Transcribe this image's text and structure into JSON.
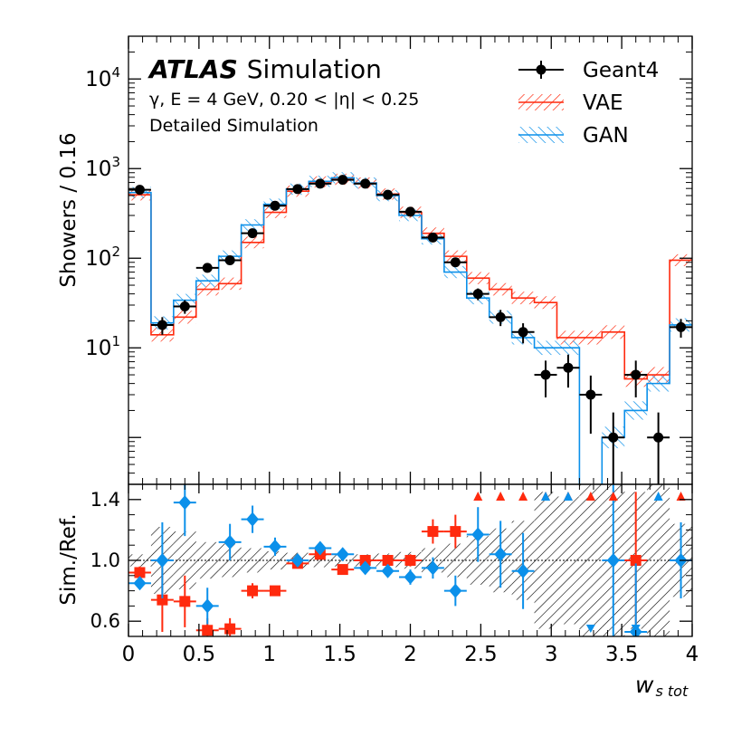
{
  "chart_data": {
    "type": "histogram-with-ratio",
    "x_edges": [
      0,
      0.16,
      0.32,
      0.48,
      0.64,
      0.8,
      0.96,
      1.12,
      1.28,
      1.44,
      1.6,
      1.76,
      1.92,
      2.08,
      2.24,
      2.4,
      2.56,
      2.72,
      2.88,
      3.04,
      3.2,
      3.36,
      3.52,
      3.68,
      3.84,
      4.0
    ],
    "xlim": [
      0,
      4
    ],
    "xticks": [
      0,
      0.5,
      1,
      1.5,
      2,
      2.5,
      3,
      3.5,
      4
    ],
    "xtick_labels": [
      "0",
      "0.5",
      "1",
      "1.5",
      "2",
      "2.5",
      "3",
      "3.5",
      "4"
    ],
    "xlabel_main": "w",
    "xlabel_sub": "s tot",
    "top_panel": {
      "ylabel": "Showers / 0.16",
      "yscale": "log",
      "ylim": [
        0.3,
        30000
      ],
      "yticks": [
        {
          "base": "10",
          "exp": "1",
          "value": 10
        },
        {
          "base": "10",
          "exp": "2",
          "value": 100
        },
        {
          "base": "10",
          "exp": "3",
          "value": 1000
        },
        {
          "base": "10",
          "exp": "4",
          "value": 10000
        }
      ],
      "series": [
        {
          "name": "Geant4",
          "style": "points",
          "color": "#000000",
          "values": [
            580,
            18,
            29,
            78,
            95,
            190,
            385,
            590,
            680,
            750,
            680,
            510,
            330,
            170,
            90,
            40,
            22,
            15,
            5,
            6,
            3,
            1,
            5,
            1,
            17
          ],
          "yerr_lo": [
            24,
            4,
            5,
            8,
            9,
            13,
            19,
            24,
            26,
            27,
            26,
            22,
            18,
            13,
            9,
            6,
            4.5,
            3.8,
            2.2,
            2.4,
            1.9,
            0.9,
            2.2,
            0.9,
            4
          ]
        },
        {
          "name": "VAE",
          "style": "hatched-step",
          "color": "#ff2a0e",
          "values": [
            510,
            14,
            22,
            45,
            52,
            150,
            325,
            560,
            710,
            760,
            690,
            520,
            325,
            190,
            105,
            60,
            45,
            36,
            32,
            13,
            13,
            15,
            4.5,
            5,
            95
          ]
        },
        {
          "name": "GAN",
          "style": "hatched-step",
          "color": "#0b90ea",
          "values": [
            540,
            19,
            34,
            56,
            105,
            235,
            400,
            590,
            720,
            790,
            690,
            500,
            300,
            165,
            70,
            36,
            22,
            13,
            10,
            10,
            0.01,
            1,
            2,
            4,
            18
          ]
        }
      ],
      "legend": [
        "Geant4",
        "VAE",
        "GAN"
      ],
      "legend_position": "top-right",
      "annotation": {
        "brand": "ATLAS",
        "label": "Simulation",
        "line1": "γ, E = 4 GeV, 0.20 < |η| < 0.25",
        "line2": "Detailed Simulation"
      }
    },
    "bottom_panel": {
      "ylabel": "Sim./Ref.",
      "ylim": [
        0.5,
        1.5
      ],
      "yticks": [
        0.6,
        1.0,
        1.4
      ],
      "ytick_labels": [
        "0.6",
        "1.0",
        "1.4"
      ],
      "reference_line": 1.0,
      "ref_unc": [
        0.04,
        0.22,
        0.19,
        0.12,
        0.11,
        0.08,
        0.06,
        0.05,
        0.045,
        0.04,
        0.04,
        0.045,
        0.055,
        0.08,
        0.11,
        0.16,
        0.21,
        0.26,
        0.45,
        0.42,
        0.6,
        1.0,
        0.45,
        1.0,
        0.24
      ],
      "series": [
        {
          "name": "VAE",
          "marker": "square",
          "color": "#ff2a0e",
          "values": [
            0.92,
            0.74,
            0.73,
            0.54,
            0.55,
            0.8,
            0.8,
            0.98,
            1.04,
            0.94,
            1.0,
            1.0,
            1.0,
            1.19,
            1.19,
            null,
            null,
            null,
            null,
            null,
            null,
            null,
            1.0,
            null,
            null
          ],
          "yerr": [
            0.04,
            0.21,
            0.17,
            0.08,
            0.07,
            0.05,
            0.03,
            0.03,
            0.03,
            0.02,
            0.02,
            0.03,
            0.04,
            0.08,
            0.11,
            null,
            null,
            null,
            null,
            null,
            null,
            null,
            0.45,
            null,
            null
          ],
          "overflow_at": [
            2.48,
            2.64,
            2.8,
            2.96,
            3.12,
            3.28,
            3.44,
            3.92
          ]
        },
        {
          "name": "GAN",
          "marker": "diamond",
          "color": "#0b90ea",
          "values": [
            0.85,
            1.0,
            1.38,
            0.7,
            1.12,
            1.27,
            1.09,
            1.0,
            1.08,
            1.04,
            0.95,
            0.93,
            0.89,
            0.95,
            0.8,
            1.17,
            1.04,
            0.93,
            null,
            null,
            null,
            1.0,
            0.53,
            null,
            1.0
          ],
          "yerr": [
            0.04,
            0.25,
            0.22,
            0.12,
            0.12,
            0.09,
            0.06,
            0.04,
            0.04,
            0.04,
            0.04,
            0.04,
            0.05,
            0.07,
            0.1,
            0.18,
            0.22,
            0.25,
            null,
            null,
            null,
            1.0,
            0.45,
            null,
            0.25
          ],
          "overflow_at": [
            2.96,
            3.12,
            3.76
          ],
          "underflow_at": [
            3.28,
            3.6
          ]
        }
      ]
    }
  }
}
